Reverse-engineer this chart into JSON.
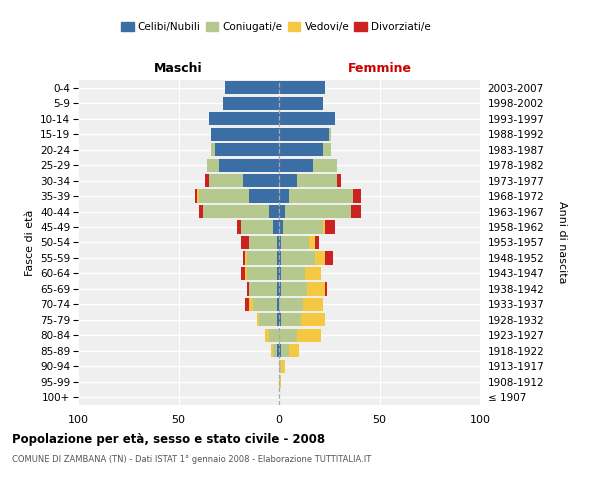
{
  "age_groups": [
    "100+",
    "95-99",
    "90-94",
    "85-89",
    "80-84",
    "75-79",
    "70-74",
    "65-69",
    "60-64",
    "55-59",
    "50-54",
    "45-49",
    "40-44",
    "35-39",
    "30-34",
    "25-29",
    "20-24",
    "15-19",
    "10-14",
    "5-9",
    "0-4"
  ],
  "birth_years": [
    "≤ 1907",
    "1908-1912",
    "1913-1917",
    "1918-1922",
    "1923-1927",
    "1928-1932",
    "1933-1937",
    "1938-1942",
    "1943-1947",
    "1948-1952",
    "1953-1957",
    "1958-1962",
    "1963-1967",
    "1968-1972",
    "1973-1977",
    "1978-1982",
    "1983-1987",
    "1988-1992",
    "1993-1997",
    "1998-2002",
    "2003-2007"
  ],
  "colors": {
    "celibi": "#3a6ea5",
    "coniugati": "#b5c98e",
    "vedovi": "#f5c842",
    "divorziati": "#cc2222"
  },
  "males": {
    "celibi": [
      0,
      0,
      0,
      1,
      0,
      1,
      1,
      1,
      1,
      1,
      1,
      3,
      5,
      15,
      18,
      30,
      32,
      34,
      35,
      28,
      27
    ],
    "coniugati": [
      0,
      0,
      0,
      2,
      5,
      9,
      12,
      14,
      15,
      15,
      14,
      16,
      33,
      25,
      17,
      6,
      2,
      0,
      0,
      0,
      0
    ],
    "vedovi": [
      0,
      0,
      0,
      1,
      2,
      1,
      2,
      0,
      1,
      1,
      0,
      0,
      0,
      1,
      0,
      0,
      0,
      0,
      0,
      0,
      0
    ],
    "divorziati": [
      0,
      0,
      0,
      0,
      0,
      0,
      2,
      1,
      2,
      1,
      4,
      2,
      2,
      1,
      2,
      0,
      0,
      0,
      0,
      0,
      0
    ]
  },
  "females": {
    "celibi": [
      0,
      0,
      0,
      1,
      0,
      1,
      0,
      1,
      1,
      1,
      1,
      2,
      3,
      5,
      9,
      17,
      22,
      25,
      28,
      22,
      23
    ],
    "coniugati": [
      0,
      0,
      1,
      4,
      9,
      10,
      12,
      13,
      12,
      17,
      14,
      20,
      33,
      32,
      20,
      12,
      4,
      1,
      0,
      0,
      0
    ],
    "vedovi": [
      0,
      1,
      2,
      5,
      12,
      12,
      10,
      9,
      8,
      5,
      3,
      1,
      0,
      0,
      0,
      0,
      0,
      0,
      0,
      0,
      0
    ],
    "divorziati": [
      0,
      0,
      0,
      0,
      0,
      0,
      0,
      1,
      0,
      4,
      2,
      5,
      5,
      4,
      2,
      0,
      0,
      0,
      0,
      0,
      0
    ]
  },
  "xlim": 100,
  "title": "Popolazione per età, sesso e stato civile - 2008",
  "subtitle": "COMUNE DI ZAMBANA (TN) - Dati ISTAT 1° gennaio 2008 - Elaborazione TUTTITALIA.IT",
  "ylabel_left": "Fasce di età",
  "ylabel_right": "Anni di nascita",
  "xlabel_left": "Maschi",
  "xlabel_right": "Femmine",
  "legend_labels": [
    "Celibi/Nubili",
    "Coniugati/e",
    "Vedovi/e",
    "Divorziati/e"
  ],
  "background_color": "#efefef",
  "maschi_color": "#000000",
  "femmine_color": "#cc0000"
}
